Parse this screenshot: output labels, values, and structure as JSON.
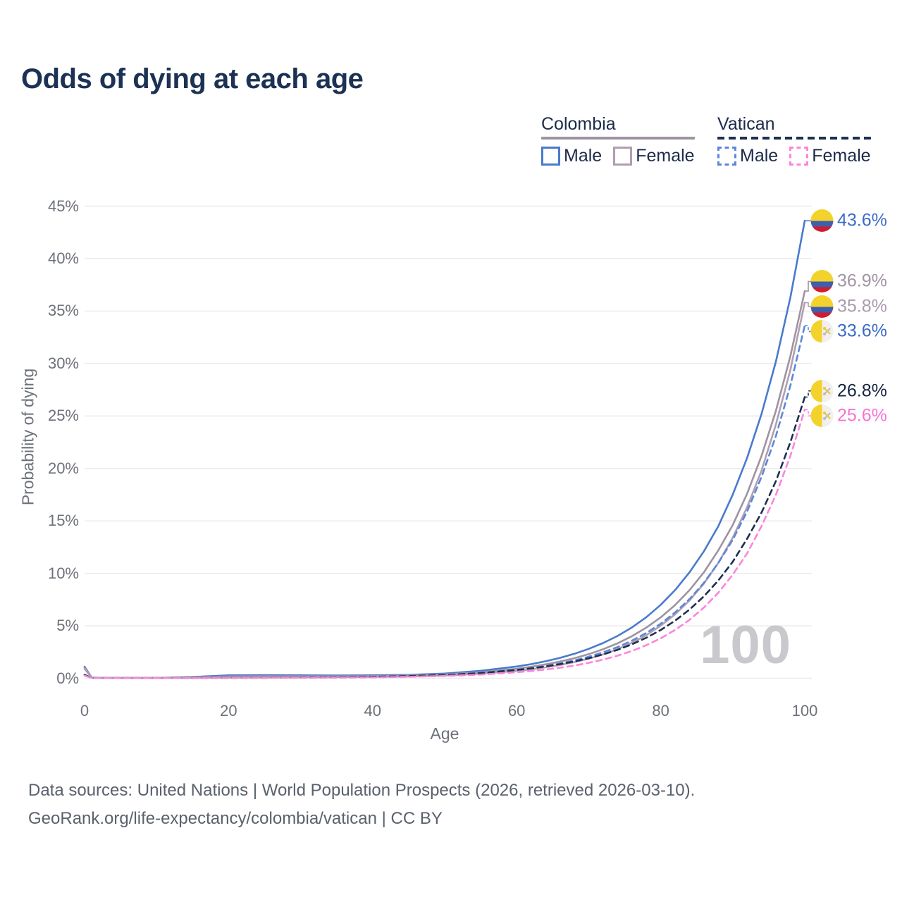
{
  "title": "Odds of dying at each age",
  "legend": {
    "groups": [
      {
        "country": "Colombia",
        "both_ref": "colombia-both",
        "items": [
          {
            "label": "Male",
            "ref": "colombia-male"
          },
          {
            "label": "Female",
            "ref": "colombia-female"
          }
        ]
      },
      {
        "country": "Vatican",
        "both_ref": "vatican-both",
        "items": [
          {
            "label": "Male",
            "ref": "vatican-male"
          },
          {
            "label": "Female",
            "ref": "vatican-female"
          }
        ]
      }
    ]
  },
  "watermark": "100",
  "footer": {
    "line1": "Data sources: United Nations | World Population Prospects (2026, retrieved 2026-03-10).",
    "line2": "GeoRank.org/life-expectancy/colombia/vatican | CC BY"
  },
  "chart_data": {
    "type": "line",
    "xlabel": "Age",
    "ylabel": "Probability of dying",
    "xlim": [
      0,
      100
    ],
    "ylim": [
      0,
      45
    ],
    "grid": true,
    "legend_position": "top-right",
    "x_ticks": [
      0,
      20,
      40,
      60,
      80,
      100
    ],
    "y_ticks": [
      0,
      5,
      10,
      15,
      20,
      25,
      30,
      35,
      40,
      45
    ],
    "y_tick_labels": [
      "0%",
      "5%",
      "10%",
      "15%",
      "20%",
      "25%",
      "30%",
      "35%",
      "40%",
      "45%"
    ],
    "ages": [
      0,
      1,
      2,
      3,
      4,
      5,
      10,
      15,
      20,
      25,
      30,
      35,
      40,
      45,
      50,
      55,
      60,
      62,
      64,
      66,
      68,
      70,
      72,
      74,
      76,
      78,
      80,
      82,
      84,
      86,
      88,
      90,
      92,
      94,
      96,
      98,
      100
    ],
    "series": [
      {
        "id": "colombia-male",
        "country": "Colombia",
        "sex": "Male",
        "style": "solid",
        "color": "#4a7ace",
        "label_color": "#3a6bc9",
        "flag": "colombia",
        "end_label": "43.6%",
        "values": [
          1.1,
          0.06,
          0.04,
          0.035,
          0.03,
          0.03,
          0.035,
          0.12,
          0.28,
          0.3,
          0.28,
          0.27,
          0.28,
          0.32,
          0.45,
          0.71,
          1.12,
          1.34,
          1.62,
          1.94,
          2.33,
          2.8,
          3.36,
          4.03,
          4.84,
          5.82,
          7.0,
          8.4,
          10.1,
          12.1,
          14.5,
          17.5,
          21.0,
          25.2,
          30.2,
          36.3,
          43.6
        ]
      },
      {
        "id": "colombia-both",
        "country": "Colombia",
        "sex": "Both",
        "style": "solid",
        "color": "#9f93a1",
        "label_color": "#a394a5",
        "flag": "colombia",
        "end_label": "36.9%",
        "values": [
          1.0,
          0.06,
          0.04,
          0.035,
          0.03,
          0.03,
          0.03,
          0.09,
          0.18,
          0.2,
          0.19,
          0.19,
          0.21,
          0.26,
          0.36,
          0.57,
          0.91,
          1.1,
          1.32,
          1.59,
          1.91,
          2.3,
          2.77,
          3.33,
          4.01,
          4.83,
          5.8,
          6.98,
          8.4,
          10.1,
          12.2,
          14.6,
          17.6,
          21.2,
          25.5,
          30.7,
          36.9
        ]
      },
      {
        "id": "colombia-female",
        "country": "Colombia",
        "sex": "Female",
        "style": "solid",
        "color": "#b19eb2",
        "label_color": "#ab9aad",
        "flag": "colombia",
        "end_label": "35.8%",
        "values": [
          0.9,
          0.05,
          0.035,
          0.03,
          0.028,
          0.027,
          0.028,
          0.05,
          0.07,
          0.075,
          0.085,
          0.1,
          0.13,
          0.17,
          0.26,
          0.43,
          0.7,
          0.85,
          1.04,
          1.26,
          1.54,
          1.87,
          2.28,
          2.78,
          3.38,
          4.11,
          5.01,
          6.09,
          7.42,
          9.03,
          11.0,
          13.4,
          16.3,
          19.8,
          24.2,
          29.4,
          35.8
        ]
      },
      {
        "id": "vatican-male",
        "country": "Vatican",
        "sex": "Male",
        "style": "dashed",
        "color": "#5c88d9",
        "label_color": "#3a6bc9",
        "flag": "vatican",
        "end_label": "33.6%",
        "values": [
          0.35,
          0.03,
          0.025,
          0.022,
          0.02,
          0.02,
          0.02,
          0.03,
          0.045,
          0.05,
          0.065,
          0.09,
          0.13,
          0.2,
          0.31,
          0.5,
          0.81,
          0.97,
          1.17,
          1.41,
          1.7,
          2.05,
          2.47,
          2.97,
          3.58,
          4.32,
          5.2,
          6.27,
          7.55,
          9.1,
          11.0,
          13.2,
          15.9,
          19.2,
          23.1,
          27.9,
          33.6
        ]
      },
      {
        "id": "vatican-both",
        "country": "Vatican",
        "sex": "Both",
        "style": "dashed",
        "color": "#1e2f4f",
        "label_color": "#17263f",
        "flag": "vatican",
        "end_label": "26.8%",
        "values": [
          0.3,
          0.028,
          0.022,
          0.02,
          0.018,
          0.018,
          0.018,
          0.025,
          0.04,
          0.045,
          0.06,
          0.09,
          0.14,
          0.21,
          0.3,
          0.49,
          0.79,
          0.94,
          1.13,
          1.34,
          1.6,
          1.91,
          2.28,
          2.71,
          3.24,
          3.86,
          4.6,
          5.49,
          6.55,
          7.81,
          9.32,
          11.1,
          13.3,
          15.8,
          18.8,
          22.5,
          26.8
        ]
      },
      {
        "id": "vatican-female",
        "country": "Vatican",
        "sex": "Female",
        "style": "dashed",
        "color": "#fb85dc",
        "label_color": "#f673d2",
        "flag": "vatican",
        "end_label": "25.6%",
        "values": [
          0.25,
          0.025,
          0.022,
          0.02,
          0.018,
          0.018,
          0.018,
          0.025,
          0.035,
          0.04,
          0.05,
          0.06,
          0.09,
          0.14,
          0.22,
          0.35,
          0.57,
          0.69,
          0.83,
          1.0,
          1.21,
          1.47,
          1.78,
          2.15,
          2.6,
          3.15,
          3.81,
          4.61,
          5.57,
          6.74,
          8.16,
          9.87,
          11.9,
          14.5,
          17.5,
          21.2,
          25.6
        ]
      }
    ]
  }
}
